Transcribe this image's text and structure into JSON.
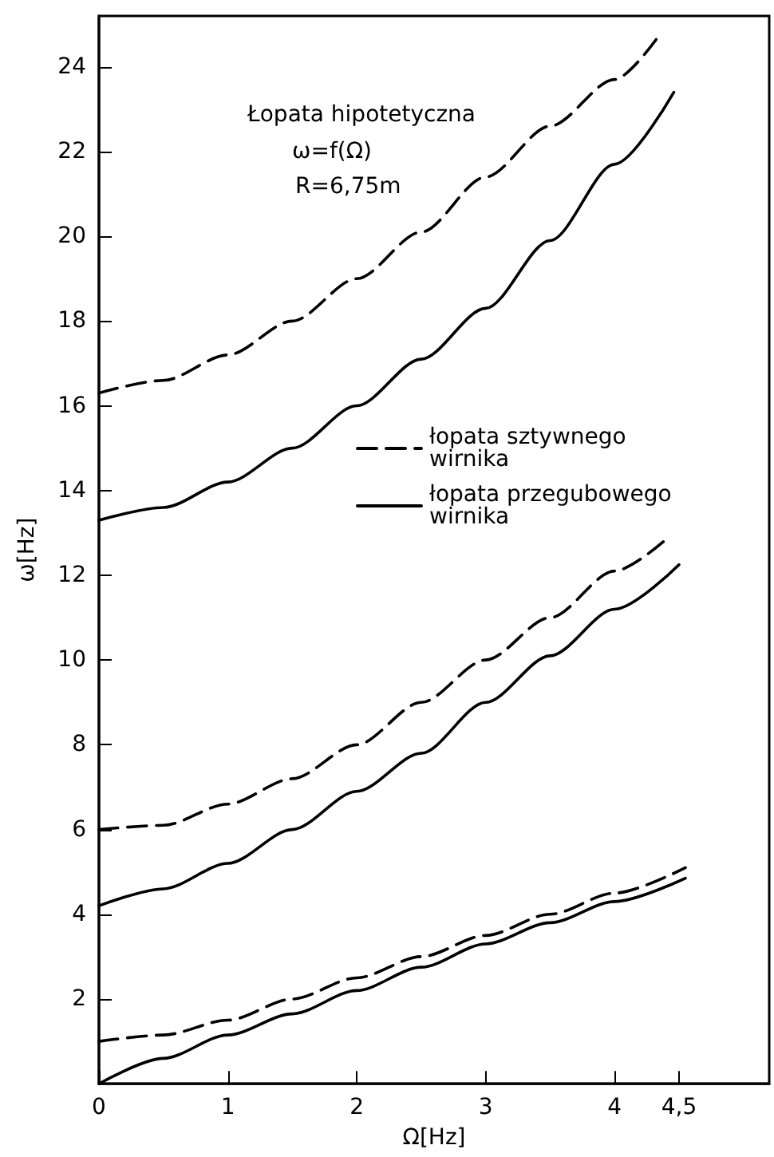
{
  "chart_data": {
    "type": "line",
    "title": "Łopata hipotetyczna",
    "annotations": [
      "ω=f(Ω)",
      "R=6,75m"
    ],
    "xlabel": "Ω[Hz]",
    "ylabel": "ω[Hz]",
    "xlim": [
      0,
      5.2
    ],
    "xticks": [
      0,
      1,
      2,
      3,
      4,
      {
        "value": 4.5,
        "label": "4,5"
      }
    ],
    "ylim": [
      0,
      25.2
    ],
    "yticks": [
      2,
      4,
      6,
      8,
      10,
      12,
      14,
      16,
      18,
      20,
      22,
      24
    ],
    "grid": false,
    "legend": "right",
    "marker": "none",
    "series": [
      {
        "name": "łopata sztywnego wirnika",
        "color": "#000000",
        "line_style": "dashed",
        "x": [
          0,
          0.5,
          1,
          1.5,
          2,
          2.5,
          3,
          3.5,
          4,
          4.36
        ],
        "values": [
          16.3,
          16.6,
          17.2,
          18.0,
          19.0,
          20.1,
          21.4,
          22.6,
          23.7,
          24.8
        ]
      },
      {
        "name": "łopata przegubowego wirnika",
        "color": "#000000",
        "line_style": "solid",
        "x": [
          0,
          0.5,
          1,
          1.5,
          2,
          2.5,
          3,
          3.5,
          4,
          4.46
        ],
        "values": [
          13.3,
          13.6,
          14.2,
          15.0,
          16.0,
          17.1,
          18.3,
          19.9,
          21.7,
          23.4
        ]
      },
      {
        "color": "#000000",
        "line_style": "dashed",
        "x": [
          0,
          0.5,
          1,
          1.5,
          2,
          2.5,
          3,
          3.5,
          4,
          4.42
        ],
        "values": [
          6.0,
          6.1,
          6.6,
          7.2,
          8.0,
          9.0,
          10.0,
          11.0,
          12.1,
          12.9
        ]
      },
      {
        "color": "#000000",
        "line_style": "solid",
        "x": [
          0,
          0.5,
          1,
          1.5,
          2,
          2.5,
          3,
          3.5,
          4,
          4.5
        ],
        "values": [
          4.2,
          4.6,
          5.2,
          6.0,
          6.9,
          7.8,
          9.0,
          10.1,
          11.2,
          12.25
        ]
      },
      {
        "color": "#000000",
        "line_style": "dashed",
        "x": [
          0,
          0.5,
          1,
          1.5,
          2,
          2.5,
          3,
          3.5,
          4,
          4.55
        ],
        "values": [
          1.0,
          1.15,
          1.5,
          2.0,
          2.5,
          3.0,
          3.5,
          4.0,
          4.5,
          5.1
        ]
      },
      {
        "color": "#000000",
        "line_style": "solid",
        "x": [
          0,
          0.5,
          1,
          1.5,
          2,
          2.5,
          3,
          3.5,
          4,
          4.55
        ],
        "values": [
          0,
          0.6,
          1.15,
          1.65,
          2.2,
          2.75,
          3.3,
          3.8,
          4.3,
          4.85
        ]
      }
    ]
  }
}
